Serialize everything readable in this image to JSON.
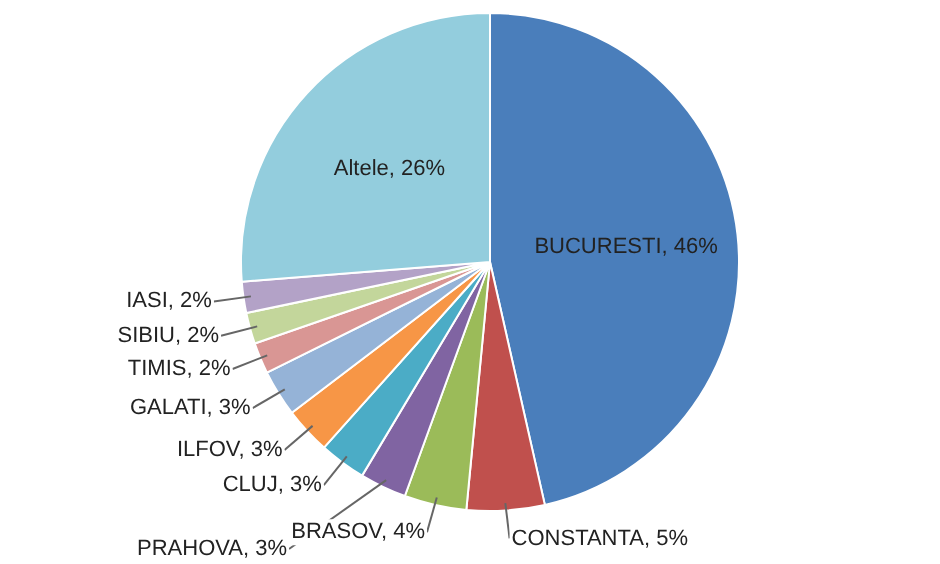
{
  "chart_data": {
    "type": "pie",
    "categories": [
      "BUCURESTI",
      "CONSTANTA",
      "BRASOV",
      "PRAHOVA",
      "CLUJ",
      "ILFOV",
      "GALATI",
      "TIMIS",
      "SIBIU",
      "IASI",
      "Altele"
    ],
    "values": [
      46,
      5,
      4,
      3,
      3,
      3,
      3,
      2,
      2,
      2,
      26
    ],
    "value_labels": [
      "46%",
      "5%",
      "4%",
      "3%",
      "3%",
      "3%",
      "3%",
      "2%",
      "2%",
      "2%",
      "26%"
    ],
    "colors": [
      "#4a7ebb",
      "#c0504d",
      "#9bbb59",
      "#8064a2",
      "#4bacc6",
      "#f79646",
      "#95b3d7",
      "#d99694",
      "#c3d69b",
      "#b3a2c7",
      "#93cddd"
    ],
    "legend": false
  }
}
